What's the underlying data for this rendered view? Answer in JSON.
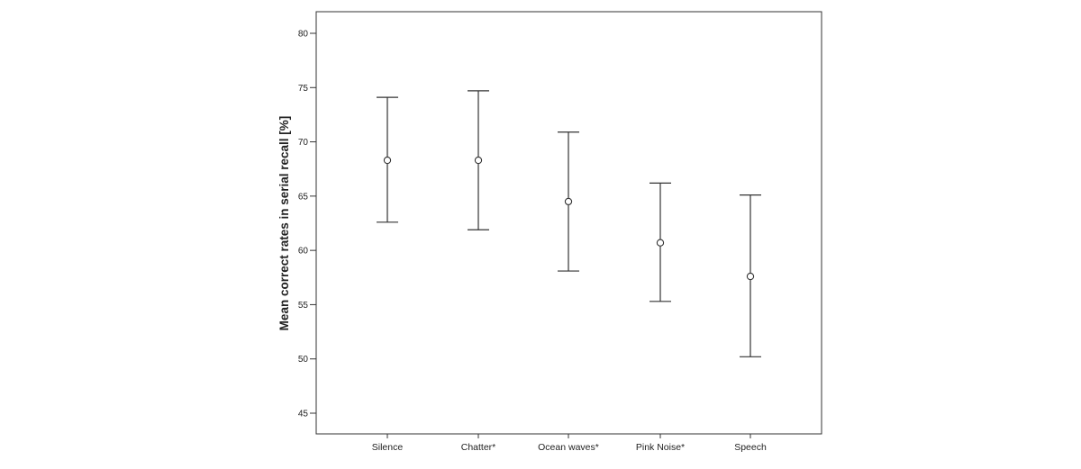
{
  "chart_data": {
    "type": "errorbar",
    "title": "",
    "xlabel": "",
    "ylabel": "Mean correct rates in serial recall [%]",
    "ylim": [
      43,
      82
    ],
    "yticks": [
      45,
      50,
      55,
      60,
      65,
      70,
      75,
      80
    ],
    "categories": [
      "Silence",
      "Chatter*",
      "Ocean waves*",
      "Pink Noise*",
      "Speech"
    ],
    "series": [
      {
        "mean": [
          68.3,
          68.3,
          64.5,
          60.7,
          57.6
        ],
        "lower": [
          62.6,
          61.9,
          58.1,
          55.3,
          50.2
        ],
        "upper": [
          74.1,
          74.7,
          70.9,
          66.2,
          65.1
        ]
      }
    ],
    "grid": false,
    "legend": "none"
  }
}
